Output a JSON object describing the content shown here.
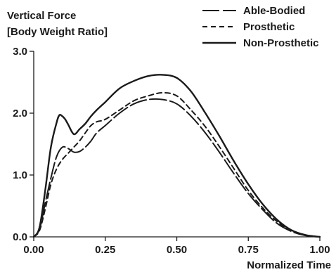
{
  "chart_data": {
    "type": "line",
    "ylabel_lines": [
      "Vertical Force",
      "[Body Weight Ratio]"
    ],
    "xlabel": "Normalized Time",
    "xlim": [
      0,
      1
    ],
    "ylim": [
      0,
      3
    ],
    "xticks": [
      {
        "value": 0,
        "label": "0.00"
      },
      {
        "value": 0.25,
        "label": "0.25"
      },
      {
        "value": 0.5,
        "label": "0.50"
      },
      {
        "value": 0.75,
        "label": "0.75"
      },
      {
        "value": 1,
        "label": "1.00"
      }
    ],
    "yticks": [
      {
        "value": 0,
        "label": "0.0"
      },
      {
        "value": 1,
        "label": "1.0"
      },
      {
        "value": 2,
        "label": "2.0"
      },
      {
        "value": 3,
        "label": "3.0"
      }
    ],
    "grid": false,
    "legend_position": "top-right",
    "series": [
      {
        "name": "Able-Bodied",
        "style": "long-dash",
        "x": [
          0,
          0.02,
          0.04,
          0.06,
          0.08,
          0.1,
          0.12,
          0.14,
          0.16,
          0.18,
          0.2,
          0.22,
          0.25,
          0.3,
          0.35,
          0.4,
          0.45,
          0.5,
          0.55,
          0.6,
          0.65,
          0.7,
          0.75,
          0.8,
          0.85,
          0.9,
          0.95,
          1.0
        ],
        "y": [
          0,
          0.12,
          0.55,
          0.95,
          1.3,
          1.45,
          1.43,
          1.37,
          1.38,
          1.45,
          1.55,
          1.68,
          1.8,
          2.0,
          2.15,
          2.22,
          2.22,
          2.15,
          1.95,
          1.68,
          1.36,
          1.02,
          0.7,
          0.44,
          0.22,
          0.09,
          0.02,
          0
        ]
      },
      {
        "name": "Prosthetic",
        "style": "short-dash",
        "x": [
          0,
          0.02,
          0.04,
          0.06,
          0.08,
          0.1,
          0.12,
          0.14,
          0.16,
          0.18,
          0.2,
          0.22,
          0.25,
          0.3,
          0.35,
          0.4,
          0.45,
          0.5,
          0.55,
          0.6,
          0.65,
          0.7,
          0.75,
          0.8,
          0.85,
          0.9,
          0.95,
          1.0
        ],
        "y": [
          0,
          0.1,
          0.45,
          0.85,
          1.1,
          1.25,
          1.35,
          1.45,
          1.55,
          1.68,
          1.8,
          1.86,
          1.9,
          2.05,
          2.2,
          2.28,
          2.33,
          2.28,
          2.05,
          1.78,
          1.45,
          1.1,
          0.75,
          0.47,
          0.25,
          0.1,
          0.03,
          0
        ]
      },
      {
        "name": "Non-Prosthetic",
        "style": "solid",
        "x": [
          0,
          0.02,
          0.04,
          0.06,
          0.08,
          0.09,
          0.1,
          0.11,
          0.12,
          0.14,
          0.16,
          0.18,
          0.2,
          0.22,
          0.25,
          0.3,
          0.35,
          0.4,
          0.45,
          0.5,
          0.55,
          0.6,
          0.65,
          0.7,
          0.75,
          0.8,
          0.85,
          0.9,
          0.95,
          1.0
        ],
        "y": [
          0,
          0.15,
          0.75,
          1.45,
          1.85,
          1.97,
          1.95,
          1.9,
          1.82,
          1.66,
          1.74,
          1.83,
          1.95,
          2.05,
          2.18,
          2.4,
          2.52,
          2.6,
          2.62,
          2.57,
          2.35,
          2.0,
          1.62,
          1.22,
          0.85,
          0.53,
          0.28,
          0.11,
          0.03,
          0
        ]
      }
    ]
  }
}
